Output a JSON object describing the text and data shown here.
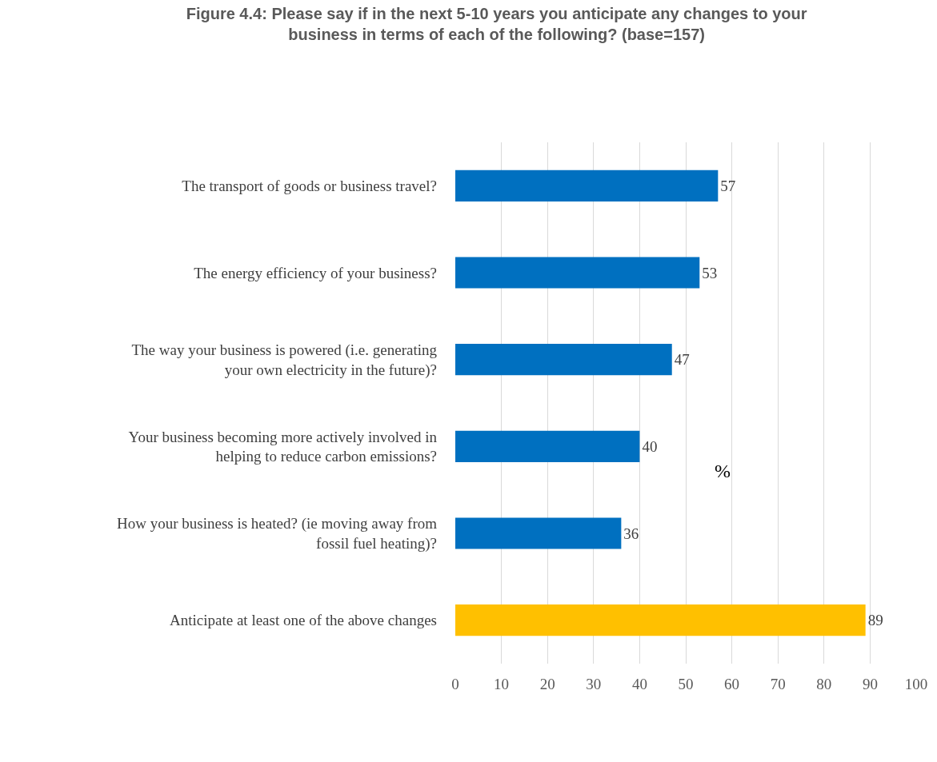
{
  "chart_data": {
    "type": "bar",
    "orientation": "horizontal",
    "title": "Figure 4.4: Please say if in the next 5-10 years you anticipate any changes to your business in terms of each of the following? (base=157)",
    "categories": [
      "The transport of goods or business travel?",
      "The energy efficiency of your business?",
      "The way your business is powered (i.e. generating your own electricity in the future)?",
      "Your business becoming more actively involved in helping to reduce carbon emissions?",
      "How your business is heated? (ie moving away from fossil fuel heating)?",
      "Anticipate at least one of the above changes"
    ],
    "values": [
      57,
      53,
      47,
      40,
      36,
      89
    ],
    "colors": [
      "#0070c0",
      "#0070c0",
      "#0070c0",
      "#0070c0",
      "#0070c0",
      "#ffc000"
    ],
    "xlim": [
      0,
      100
    ],
    "xticks": [
      0,
      10,
      20,
      30,
      40,
      50,
      60,
      70,
      80,
      90,
      100
    ],
    "grid": "x",
    "data_labels": true,
    "legend": false,
    "annotations": [
      "%"
    ]
  }
}
